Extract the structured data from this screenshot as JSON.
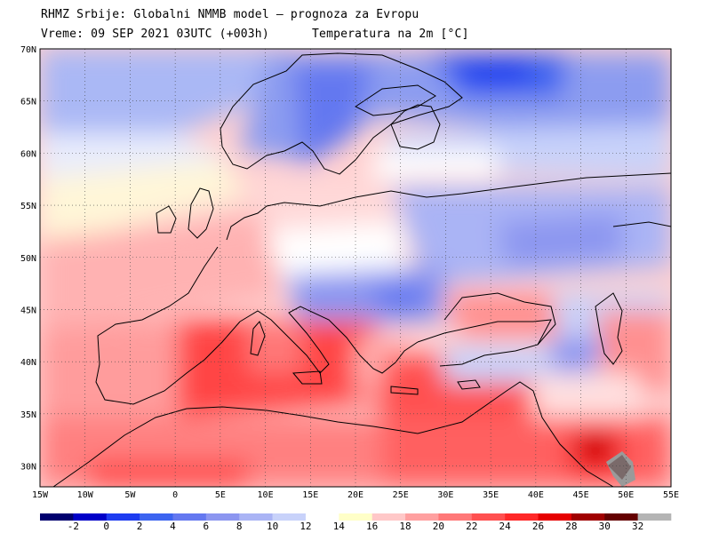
{
  "header": {
    "line1": "RHMZ Srbije: Globalni NMMB model – prognoza za Evropu",
    "line2": "Vreme: 09 SEP 2021 03UTC (+003h)      Temperatura na 2m [°C]"
  },
  "map": {
    "lat_labels": [
      "70N",
      "65N",
      "60N",
      "55N",
      "50N",
      "45N",
      "40N",
      "35N",
      "30N"
    ],
    "lon_labels": [
      "15W",
      "10W",
      "5W",
      "0",
      "5E",
      "10E",
      "15E",
      "20E",
      "25E",
      "30E",
      "35E",
      "40E",
      "45E",
      "50E",
      "55E"
    ],
    "lat_range": [
      28,
      70
    ],
    "lon_range": [
      -15,
      55
    ],
    "gridlines": true
  },
  "colorbar": {
    "labels": [
      "-2",
      "0",
      "2",
      "4",
      "6",
      "8",
      "10",
      "12",
      "14",
      "16",
      "18",
      "20",
      "22",
      "24",
      "26",
      "28",
      "30",
      "32"
    ],
    "colors": [
      "#00006e",
      "#0000c8",
      "#1e3cf0",
      "#3c64f0",
      "#6478f0",
      "#8c96f0",
      "#aab4f5",
      "#c8d2fa",
      "#ffffff",
      "#ffffc8",
      "#ffc8c8",
      "#ffa0a0",
      "#ff7878",
      "#ff5050",
      "#ff2828",
      "#e60000",
      "#a00000",
      "#640000",
      "#b4b4b4"
    ]
  }
}
